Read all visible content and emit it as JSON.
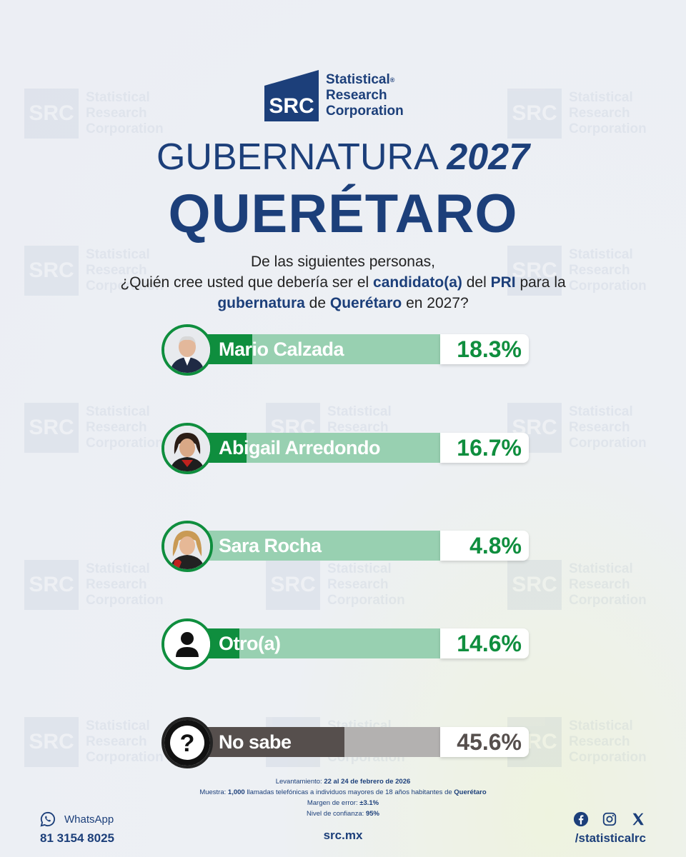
{
  "brand": {
    "logo_abbr": "SRC",
    "logo_line1": "Statistical",
    "logo_line2": "Research",
    "logo_line3": "Corporation",
    "registered_mark": "®",
    "color": "#1c3f7a"
  },
  "title": {
    "line1_text": "GUBERNATURA",
    "line1_year": "2027",
    "line2": "QUERÉTARO"
  },
  "question": {
    "part1": "De las siguientes personas,",
    "part2": "¿Quién cree usted que debería ser el",
    "bold1": "candidato(a)",
    "part3": "del",
    "bold2": "PRI",
    "part4": "para la",
    "bold3": "gubernatura",
    "part5": "de",
    "bold4": "Querétaro",
    "part6": "en 2027?"
  },
  "chart_data": {
    "type": "bar",
    "categories": [
      "Mario Calzada",
      "Abigail Arredondo",
      "Sara Rocha",
      "Otro(a)",
      "No sabe"
    ],
    "values": [
      18.3,
      16.7,
      4.8,
      14.6,
      45.6
    ],
    "value_labels": [
      "18.3%",
      "16.7%",
      "4.8%",
      "14.6%",
      "45.6%"
    ],
    "unit": "%",
    "ylim": [
      0,
      100
    ],
    "colors": {
      "bar": "#0f8e3e",
      "bar_track": "#98d0b1",
      "nosabe_bar": "#564f4d",
      "nosabe_track": "#b3b1b0"
    },
    "icons": [
      "photo-mario-calzada",
      "photo-abigail-arredondo",
      "photo-sara-rocha",
      "person-icon",
      "question-icon"
    ]
  },
  "notes": {
    "levantamiento_label": "Levantamiento:",
    "levantamiento_value": "22 al 24 de febrero de 2026",
    "muestra_label": "Muestra:",
    "muestra_value": "1,000",
    "muestra_text": "llamadas telefónicas a individuos mayores de 18 años habitantes de",
    "muestra_place": "Querétaro",
    "margen_label": "Margen de error:",
    "margen_value": "±3.1%",
    "nivel_label": "Nivel de confianza:",
    "nivel_value": "95%"
  },
  "footer": {
    "whatsapp_label": "WhatsApp",
    "whatsapp_number": "81 3154 8025",
    "website": "src.mx",
    "social_handle": "/statisticalrc",
    "icons": [
      "whatsapp-icon",
      "facebook-icon",
      "instagram-icon",
      "x-icon"
    ]
  }
}
